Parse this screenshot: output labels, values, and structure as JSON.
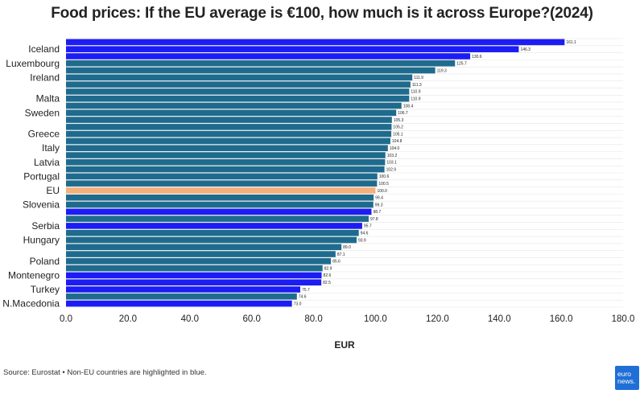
{
  "chart_data": {
    "type": "bar",
    "orientation": "horizontal",
    "title": "Food prices: If the EU average is €100, how much is it across Europe?(2024)",
    "xlabel": "EUR",
    "ylabel": "",
    "xlim": [
      0,
      180
    ],
    "xticks": [
      "0.0",
      "20.0",
      "40.0",
      "60.0",
      "80.0",
      "100.0",
      "120.0",
      "140.0",
      "160.0",
      "180.0"
    ],
    "grid": true,
    "colors": {
      "eu": "#1f6b8e",
      "non_eu": "#1c1cf5",
      "average": "#f3b07a"
    },
    "bars": [
      {
        "label": "",
        "value": 161.1,
        "display": "161.1",
        "group": "non_eu"
      },
      {
        "label": "Iceland",
        "value": 146.3,
        "display": "146.3",
        "group": "non_eu"
      },
      {
        "label": "",
        "value": 130.6,
        "display": "130.6",
        "group": "non_eu"
      },
      {
        "label": "Luxembourg",
        "value": 125.7,
        "display": "125.7",
        "group": "eu"
      },
      {
        "label": "",
        "value": 119.3,
        "display": "119.3",
        "group": "eu"
      },
      {
        "label": "Ireland",
        "value": 111.9,
        "display": "111.9",
        "group": "eu"
      },
      {
        "label": "",
        "value": 111.3,
        "display": "111.3",
        "group": "eu"
      },
      {
        "label": "",
        "value": 110.9,
        "display": "110.9",
        "group": "eu"
      },
      {
        "label": "Malta",
        "value": 110.9,
        "display": "110.9",
        "group": "eu"
      },
      {
        "label": "",
        "value": 108.4,
        "display": "108.4",
        "group": "eu"
      },
      {
        "label": "Sweden",
        "value": 106.7,
        "display": "106.7",
        "group": "eu"
      },
      {
        "label": "",
        "value": 105.3,
        "display": "105.3",
        "group": "eu"
      },
      {
        "label": "",
        "value": 105.2,
        "display": "105.2",
        "group": "eu"
      },
      {
        "label": "Greece",
        "value": 105.1,
        "display": "105.1",
        "group": "eu"
      },
      {
        "label": "",
        "value": 104.8,
        "display": "104.8",
        "group": "eu"
      },
      {
        "label": "Italy",
        "value": 104.0,
        "display": "104.0",
        "group": "eu"
      },
      {
        "label": "",
        "value": 103.2,
        "display": "103.2",
        "group": "eu"
      },
      {
        "label": "Latvia",
        "value": 103.1,
        "display": "103.1",
        "group": "eu"
      },
      {
        "label": "",
        "value": 102.9,
        "display": "102.9",
        "group": "eu"
      },
      {
        "label": "Portugal",
        "value": 100.6,
        "display": "100.6",
        "group": "eu"
      },
      {
        "label": "",
        "value": 100.5,
        "display": "100.5",
        "group": "eu"
      },
      {
        "label": "EU",
        "value": 100.0,
        "display": "100.0",
        "group": "average"
      },
      {
        "label": "",
        "value": 99.4,
        "display": "99.4",
        "group": "eu"
      },
      {
        "label": "Slovenia",
        "value": 99.3,
        "display": "99.3",
        "group": "eu"
      },
      {
        "label": "",
        "value": 98.7,
        "display": "98.7",
        "group": "non_eu"
      },
      {
        "label": "",
        "value": 97.8,
        "display": "97.8",
        "group": "eu"
      },
      {
        "label": "Serbia",
        "value": 95.7,
        "display": "95.7",
        "group": "non_eu"
      },
      {
        "label": "",
        "value": 94.6,
        "display": "94.6",
        "group": "eu"
      },
      {
        "label": "Hungary",
        "value": 93.9,
        "display": "93.9",
        "group": "eu"
      },
      {
        "label": "",
        "value": 89.0,
        "display": "89.0",
        "group": "eu"
      },
      {
        "label": "",
        "value": 87.1,
        "display": "87.1",
        "group": "eu"
      },
      {
        "label": "Poland",
        "value": 85.6,
        "display": "85.6",
        "group": "eu"
      },
      {
        "label": "",
        "value": 82.9,
        "display": "82.9",
        "group": "eu"
      },
      {
        "label": "Montenegro",
        "value": 82.6,
        "display": "82.6",
        "group": "non_eu"
      },
      {
        "label": "",
        "value": 82.5,
        "display": "82.5",
        "group": "non_eu"
      },
      {
        "label": "Turkey",
        "value": 75.7,
        "display": "75.7",
        "group": "non_eu"
      },
      {
        "label": "",
        "value": 74.6,
        "display": "74.6",
        "group": "eu"
      },
      {
        "label": "N.Macedonia",
        "value": 73.0,
        "display": "73.0",
        "group": "non_eu"
      }
    ]
  },
  "footer": {
    "source": "Source: Eurostat • Non-EU countries are highlighted in blue.",
    "logo_line1": "euro",
    "logo_line2": "news."
  }
}
